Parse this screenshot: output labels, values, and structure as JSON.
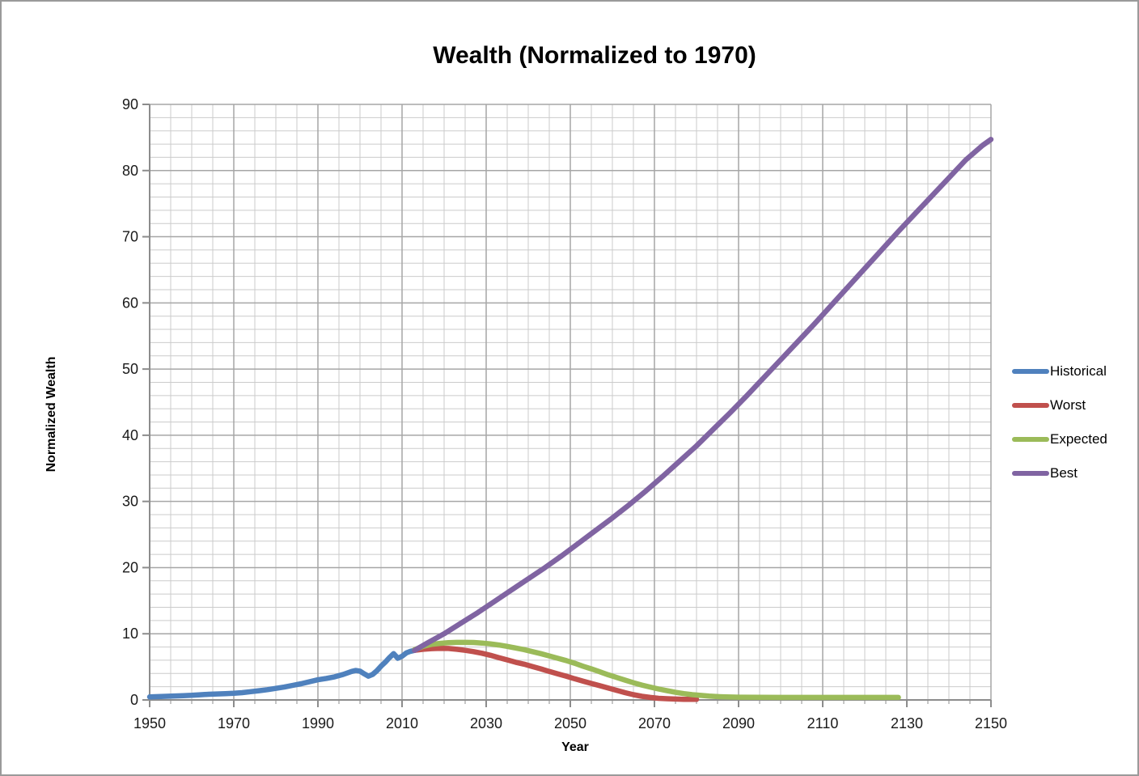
{
  "chart_data": {
    "type": "line",
    "title": "Wealth (Normalized to 1970)",
    "xlabel": "Year",
    "ylabel": "Normalized Wealth",
    "xlim": [
      1950,
      2150
    ],
    "ylim": [
      0,
      90
    ],
    "x_ticks": [
      1950,
      1970,
      1990,
      2010,
      2030,
      2050,
      2070,
      2090,
      2110,
      2130,
      2150
    ],
    "y_ticks": [
      0,
      10,
      20,
      30,
      40,
      50,
      60,
      70,
      80,
      90
    ],
    "x_minor_step": 5,
    "y_minor_step": 2,
    "grid": "major+minor",
    "legend_position": "right",
    "series": [
      {
        "name": "Historical",
        "color": "#4F81BD",
        "points": [
          [
            1950,
            0.45
          ],
          [
            1952,
            0.5
          ],
          [
            1954,
            0.55
          ],
          [
            1956,
            0.6
          ],
          [
            1958,
            0.65
          ],
          [
            1960,
            0.7
          ],
          [
            1962,
            0.78
          ],
          [
            1964,
            0.85
          ],
          [
            1966,
            0.9
          ],
          [
            1968,
            0.95
          ],
          [
            1970,
            1.0
          ],
          [
            1972,
            1.1
          ],
          [
            1974,
            1.25
          ],
          [
            1976,
            1.4
          ],
          [
            1978,
            1.55
          ],
          [
            1980,
            1.75
          ],
          [
            1982,
            1.95
          ],
          [
            1984,
            2.2
          ],
          [
            1986,
            2.45
          ],
          [
            1988,
            2.75
          ],
          [
            1990,
            3.05
          ],
          [
            1992,
            3.25
          ],
          [
            1994,
            3.5
          ],
          [
            1996,
            3.85
          ],
          [
            1998,
            4.3
          ],
          [
            1999,
            4.45
          ],
          [
            2000,
            4.35
          ],
          [
            2001,
            3.95
          ],
          [
            2002,
            3.6
          ],
          [
            2003,
            3.85
          ],
          [
            2004,
            4.4
          ],
          [
            2005,
            5.1
          ],
          [
            2006,
            5.7
          ],
          [
            2007,
            6.4
          ],
          [
            2008,
            7.0
          ],
          [
            2009,
            6.3
          ],
          [
            2010,
            6.6
          ],
          [
            2011,
            7.1
          ],
          [
            2012,
            7.35
          ],
          [
            2013,
            7.5
          ]
        ]
      },
      {
        "name": "Worst",
        "color": "#C0504D",
        "points": [
          [
            2013,
            7.5
          ],
          [
            2015,
            7.65
          ],
          [
            2017,
            7.75
          ],
          [
            2019,
            7.8
          ],
          [
            2021,
            7.78
          ],
          [
            2023,
            7.65
          ],
          [
            2025,
            7.5
          ],
          [
            2027,
            7.3
          ],
          [
            2029,
            7.05
          ],
          [
            2031,
            6.75
          ],
          [
            2033,
            6.4
          ],
          [
            2035,
            6.05
          ],
          [
            2037,
            5.7
          ],
          [
            2039,
            5.4
          ],
          [
            2041,
            5.05
          ],
          [
            2043,
            4.7
          ],
          [
            2045,
            4.3
          ],
          [
            2047,
            3.95
          ],
          [
            2049,
            3.6
          ],
          [
            2051,
            3.2
          ],
          [
            2053,
            2.85
          ],
          [
            2055,
            2.5
          ],
          [
            2057,
            2.15
          ],
          [
            2059,
            1.8
          ],
          [
            2061,
            1.45
          ],
          [
            2063,
            1.1
          ],
          [
            2065,
            0.8
          ],
          [
            2067,
            0.55
          ],
          [
            2069,
            0.38
          ],
          [
            2071,
            0.25
          ],
          [
            2073,
            0.18
          ],
          [
            2075,
            0.13
          ],
          [
            2077,
            0.1
          ],
          [
            2080,
            0.08
          ]
        ]
      },
      {
        "name": "Expected",
        "color": "#9BBB59",
        "points": [
          [
            2013,
            7.6
          ],
          [
            2015,
            8.1
          ],
          [
            2017,
            8.4
          ],
          [
            2019,
            8.55
          ],
          [
            2021,
            8.65
          ],
          [
            2023,
            8.7
          ],
          [
            2025,
            8.7
          ],
          [
            2027,
            8.68
          ],
          [
            2029,
            8.6
          ],
          [
            2031,
            8.48
          ],
          [
            2033,
            8.3
          ],
          [
            2035,
            8.1
          ],
          [
            2037,
            7.85
          ],
          [
            2039,
            7.6
          ],
          [
            2041,
            7.3
          ],
          [
            2043,
            7.0
          ],
          [
            2045,
            6.65
          ],
          [
            2047,
            6.3
          ],
          [
            2049,
            5.95
          ],
          [
            2051,
            5.55
          ],
          [
            2053,
            5.1
          ],
          [
            2055,
            4.7
          ],
          [
            2057,
            4.25
          ],
          [
            2059,
            3.8
          ],
          [
            2061,
            3.4
          ],
          [
            2063,
            3.0
          ],
          [
            2065,
            2.6
          ],
          [
            2067,
            2.25
          ],
          [
            2069,
            1.95
          ],
          [
            2071,
            1.65
          ],
          [
            2073,
            1.4
          ],
          [
            2075,
            1.15
          ],
          [
            2077,
            0.95
          ],
          [
            2079,
            0.8
          ],
          [
            2081,
            0.68
          ],
          [
            2083,
            0.58
          ],
          [
            2085,
            0.5
          ],
          [
            2087,
            0.45
          ],
          [
            2090,
            0.42
          ],
          [
            2095,
            0.4
          ],
          [
            2100,
            0.38
          ],
          [
            2105,
            0.38
          ],
          [
            2110,
            0.38
          ],
          [
            2115,
            0.38
          ],
          [
            2120,
            0.38
          ],
          [
            2124,
            0.38
          ],
          [
            2128,
            0.38
          ]
        ]
      },
      {
        "name": "Best",
        "color": "#8064A2",
        "points": [
          [
            2013,
            7.5
          ],
          [
            2016,
            8.6
          ],
          [
            2020,
            10.0
          ],
          [
            2024,
            11.6
          ],
          [
            2028,
            13.2
          ],
          [
            2032,
            14.9
          ],
          [
            2036,
            16.6
          ],
          [
            2040,
            18.3
          ],
          [
            2044,
            20.0
          ],
          [
            2048,
            21.8
          ],
          [
            2052,
            23.7
          ],
          [
            2056,
            25.6
          ],
          [
            2060,
            27.5
          ],
          [
            2064,
            29.5
          ],
          [
            2068,
            31.6
          ],
          [
            2072,
            33.8
          ],
          [
            2076,
            36.1
          ],
          [
            2080,
            38.4
          ],
          [
            2084,
            40.9
          ],
          [
            2088,
            43.4
          ],
          [
            2092,
            46.0
          ],
          [
            2096,
            48.7
          ],
          [
            2100,
            51.4
          ],
          [
            2104,
            54.1
          ],
          [
            2108,
            56.8
          ],
          [
            2112,
            59.6
          ],
          [
            2116,
            62.4
          ],
          [
            2120,
            65.2
          ],
          [
            2124,
            68.0
          ],
          [
            2128,
            70.8
          ],
          [
            2132,
            73.5
          ],
          [
            2136,
            76.2
          ],
          [
            2140,
            78.9
          ],
          [
            2144,
            81.6
          ],
          [
            2148,
            83.8
          ],
          [
            2150,
            84.7
          ]
        ]
      }
    ],
    "style_colors": {
      "minor_grid": "#CBCBCB",
      "major_grid": "#A6A6A6",
      "axis": "#8C8C8C",
      "tick_text": "#1a1a1a"
    }
  }
}
